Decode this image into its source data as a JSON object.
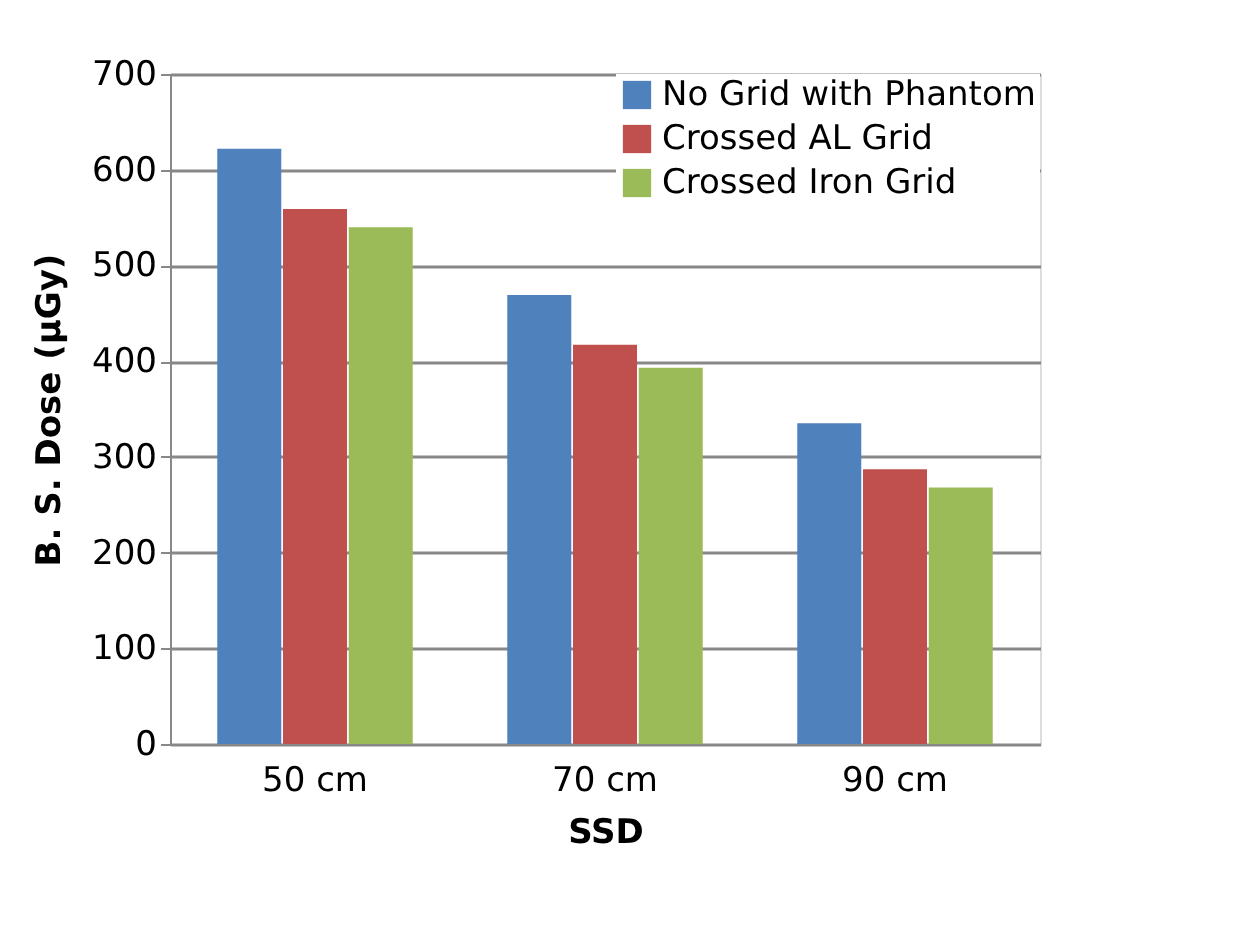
{
  "chart_data": {
    "type": "bar",
    "xlabel": "SSD",
    "ylabel": "B. S. Dose (µGy)",
    "categories": [
      "50 cm",
      "70 cm",
      "90 cm"
    ],
    "series": [
      {
        "name": "No Grid with Phantom",
        "color": "#4f81bd",
        "values": [
          622,
          469,
          335
        ]
      },
      {
        "name": "Crossed AL Grid",
        "color": "#c0504d",
        "values": [
          559,
          417,
          287
        ]
      },
      {
        "name": "Crossed Iron Grid",
        "color": "#9bbb59",
        "values": [
          540,
          393,
          268
        ]
      }
    ],
    "ylim": [
      0,
      700
    ],
    "yticks": [
      0,
      100,
      200,
      300,
      400,
      500,
      600,
      700
    ],
    "grid": "y",
    "legend": "top right"
  }
}
